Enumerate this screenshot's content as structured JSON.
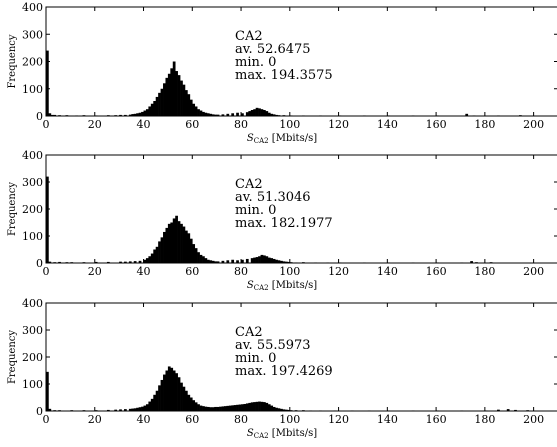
{
  "chart_data": [
    {
      "type": "bar",
      "xlabel_symbol": "S",
      "xlabel_subscript": "CA2",
      "xlabel_unit": "[Mbits/s]",
      "ylabel": "Frequency",
      "xlim": [
        0,
        210
      ],
      "ylim": [
        0,
        400
      ],
      "xticks": [
        "0",
        "20",
        "40",
        "60",
        "80",
        "100",
        "120",
        "140",
        "160",
        "180",
        "200"
      ],
      "yticks": [
        "0",
        "100",
        "200",
        "300",
        "400"
      ],
      "annotation": [
        "CA2",
        "av.  52.6475",
        "min.  0",
        "max.  194.3575"
      ],
      "bin_width": 1,
      "bins": [
        [
          0,
          240
        ],
        [
          1,
          10
        ],
        [
          2,
          4
        ],
        [
          3,
          4
        ],
        [
          5,
          3
        ],
        [
          8,
          3
        ],
        [
          12,
          2
        ],
        [
          15,
          3
        ],
        [
          20,
          2
        ],
        [
          25,
          3
        ],
        [
          28,
          3
        ],
        [
          30,
          4
        ],
        [
          32,
          4
        ],
        [
          34,
          5
        ],
        [
          35,
          7
        ],
        [
          36,
          8
        ],
        [
          37,
          10
        ],
        [
          38,
          12
        ],
        [
          39,
          15
        ],
        [
          40,
          20
        ],
        [
          41,
          25
        ],
        [
          42,
          35
        ],
        [
          43,
          45
        ],
        [
          44,
          55
        ],
        [
          45,
          70
        ],
        [
          46,
          85
        ],
        [
          47,
          100
        ],
        [
          48,
          120
        ],
        [
          49,
          140
        ],
        [
          50,
          155
        ],
        [
          51,
          175
        ],
        [
          52,
          200
        ],
        [
          53,
          165
        ],
        [
          54,
          150
        ],
        [
          55,
          130
        ],
        [
          56,
          115
        ],
        [
          57,
          95
        ],
        [
          58,
          80
        ],
        [
          59,
          60
        ],
        [
          60,
          45
        ],
        [
          61,
          35
        ],
        [
          62,
          25
        ],
        [
          63,
          20
        ],
        [
          64,
          15
        ],
        [
          65,
          12
        ],
        [
          66,
          10
        ],
        [
          67,
          8
        ],
        [
          68,
          6
        ],
        [
          69,
          5
        ],
        [
          70,
          5
        ],
        [
          72,
          6
        ],
        [
          74,
          8
        ],
        [
          76,
          10
        ],
        [
          78,
          12
        ],
        [
          80,
          10
        ],
        [
          82,
          14
        ],
        [
          83,
          18
        ],
        [
          84,
          22
        ],
        [
          85,
          25
        ],
        [
          86,
          30
        ],
        [
          87,
          28
        ],
        [
          88,
          25
        ],
        [
          89,
          22
        ],
        [
          90,
          18
        ],
        [
          91,
          12
        ],
        [
          92,
          8
        ],
        [
          93,
          6
        ],
        [
          94,
          4
        ],
        [
          95,
          3
        ],
        [
          97,
          3
        ],
        [
          100,
          2
        ],
        [
          105,
          2
        ],
        [
          112,
          2
        ],
        [
          120,
          2
        ],
        [
          130,
          2
        ],
        [
          140,
          2
        ],
        [
          150,
          2
        ],
        [
          160,
          2
        ],
        [
          172,
          8
        ],
        [
          175,
          2
        ],
        [
          185,
          2
        ],
        [
          194,
          3
        ]
      ]
    },
    {
      "type": "bar",
      "xlabel_symbol": "S",
      "xlabel_subscript": "CA2",
      "xlabel_unit": "[Mbits/s]",
      "ylabel": "Frequency",
      "xlim": [
        0,
        210
      ],
      "ylim": [
        0,
        400
      ],
      "xticks": [
        "0",
        "20",
        "40",
        "60",
        "80",
        "100",
        "120",
        "140",
        "160",
        "180",
        "200"
      ],
      "yticks": [
        "0",
        "100",
        "200",
        "300",
        "400"
      ],
      "annotation": [
        "CA2",
        "av.  51.3046",
        "min.  0",
        "max.  182.1977"
      ],
      "bin_width": 1,
      "bins": [
        [
          0,
          320
        ],
        [
          1,
          5
        ],
        [
          3,
          3
        ],
        [
          5,
          4
        ],
        [
          8,
          3
        ],
        [
          10,
          3
        ],
        [
          15,
          3
        ],
        [
          20,
          4
        ],
        [
          25,
          4
        ],
        [
          30,
          5
        ],
        [
          32,
          5
        ],
        [
          34,
          6
        ],
        [
          36,
          7
        ],
        [
          38,
          8
        ],
        [
          40,
          12
        ],
        [
          41,
          18
        ],
        [
          42,
          25
        ],
        [
          43,
          35
        ],
        [
          44,
          50
        ],
        [
          45,
          60
        ],
        [
          46,
          80
        ],
        [
          47,
          95
        ],
        [
          48,
          115
        ],
        [
          49,
          130
        ],
        [
          50,
          145
        ],
        [
          51,
          150
        ],
        [
          52,
          165
        ],
        [
          53,
          175
        ],
        [
          54,
          155
        ],
        [
          55,
          145
        ],
        [
          56,
          135
        ],
        [
          57,
          120
        ],
        [
          58,
          110
        ],
        [
          59,
          90
        ],
        [
          60,
          70
        ],
        [
          61,
          55
        ],
        [
          62,
          40
        ],
        [
          63,
          30
        ],
        [
          64,
          25
        ],
        [
          65,
          18
        ],
        [
          66,
          12
        ],
        [
          67,
          10
        ],
        [
          68,
          8
        ],
        [
          69,
          6
        ],
        [
          70,
          6
        ],
        [
          72,
          8
        ],
        [
          74,
          10
        ],
        [
          76,
          12
        ],
        [
          78,
          10
        ],
        [
          80,
          12
        ],
        [
          82,
          15
        ],
        [
          84,
          18
        ],
        [
          85,
          20
        ],
        [
          86,
          22
        ],
        [
          87,
          25
        ],
        [
          88,
          30
        ],
        [
          89,
          28
        ],
        [
          90,
          25
        ],
        [
          91,
          20
        ],
        [
          92,
          18
        ],
        [
          93,
          15
        ],
        [
          94,
          12
        ],
        [
          95,
          10
        ],
        [
          96,
          8
        ],
        [
          97,
          6
        ],
        [
          98,
          5
        ],
        [
          99,
          4
        ],
        [
          100,
          3
        ],
        [
          102,
          2
        ],
        [
          105,
          3
        ],
        [
          110,
          2
        ],
        [
          115,
          2
        ],
        [
          120,
          2
        ],
        [
          130,
          2
        ],
        [
          140,
          2
        ],
        [
          150,
          2
        ],
        [
          160,
          2
        ],
        [
          170,
          2
        ],
        [
          174,
          7
        ],
        [
          176,
          3
        ],
        [
          182,
          3
        ]
      ]
    },
    {
      "type": "bar",
      "xlabel_symbol": "S",
      "xlabel_subscript": "CA2",
      "xlabel_unit": "[Mbits/s]",
      "ylabel": "Frequency",
      "xlim": [
        0,
        210
      ],
      "ylim": [
        0,
        400
      ],
      "xticks": [
        "0",
        "20",
        "40",
        "60",
        "80",
        "100",
        "120",
        "140",
        "160",
        "180",
        "200"
      ],
      "yticks": [
        "0",
        "100",
        "200",
        "300",
        "400"
      ],
      "annotation": [
        "CA2",
        "av.  55.5973",
        "min.  0",
        "max.  197.4269"
      ],
      "bin_width": 1,
      "bins": [
        [
          0,
          145
        ],
        [
          1,
          8
        ],
        [
          3,
          3
        ],
        [
          5,
          3
        ],
        [
          10,
          3
        ],
        [
          15,
          3
        ],
        [
          20,
          3
        ],
        [
          25,
          4
        ],
        [
          28,
          5
        ],
        [
          30,
          6
        ],
        [
          32,
          7
        ],
        [
          34,
          8
        ],
        [
          35,
          9
        ],
        [
          36,
          10
        ],
        [
          37,
          12
        ],
        [
          38,
          14
        ],
        [
          39,
          16
        ],
        [
          40,
          20
        ],
        [
          41,
          25
        ],
        [
          42,
          35
        ],
        [
          43,
          45
        ],
        [
          44,
          60
        ],
        [
          45,
          75
        ],
        [
          46,
          95
        ],
        [
          47,
          115
        ],
        [
          48,
          135
        ],
        [
          49,
          150
        ],
        [
          50,
          165
        ],
        [
          51,
          160
        ],
        [
          52,
          150
        ],
        [
          53,
          140
        ],
        [
          54,
          125
        ],
        [
          55,
          105
        ],
        [
          56,
          90
        ],
        [
          57,
          75
        ],
        [
          58,
          60
        ],
        [
          59,
          50
        ],
        [
          60,
          40
        ],
        [
          61,
          32
        ],
        [
          62,
          25
        ],
        [
          63,
          20
        ],
        [
          64,
          18
        ],
        [
          65,
          16
        ],
        [
          66,
          15
        ],
        [
          67,
          14
        ],
        [
          68,
          14
        ],
        [
          69,
          15
        ],
        [
          70,
          15
        ],
        [
          71,
          16
        ],
        [
          72,
          17
        ],
        [
          73,
          18
        ],
        [
          74,
          19
        ],
        [
          75,
          20
        ],
        [
          76,
          21
        ],
        [
          77,
          22
        ],
        [
          78,
          23
        ],
        [
          79,
          24
        ],
        [
          80,
          25
        ],
        [
          81,
          26
        ],
        [
          82,
          28
        ],
        [
          83,
          30
        ],
        [
          84,
          32
        ],
        [
          85,
          33
        ],
        [
          86,
          34
        ],
        [
          87,
          35
        ],
        [
          88,
          34
        ],
        [
          89,
          33
        ],
        [
          90,
          30
        ],
        [
          91,
          25
        ],
        [
          92,
          20
        ],
        [
          93,
          15
        ],
        [
          94,
          12
        ],
        [
          95,
          10
        ],
        [
          96,
          8
        ],
        [
          97,
          6
        ],
        [
          98,
          5
        ],
        [
          99,
          4
        ],
        [
          100,
          3
        ],
        [
          102,
          3
        ],
        [
          105,
          3
        ],
        [
          108,
          2
        ],
        [
          112,
          2
        ],
        [
          118,
          2
        ],
        [
          125,
          2
        ],
        [
          132,
          2
        ],
        [
          140,
          2
        ],
        [
          150,
          2
        ],
        [
          160,
          2
        ],
        [
          170,
          2
        ],
        [
          180,
          2
        ],
        [
          185,
          5
        ],
        [
          189,
          7
        ],
        [
          192,
          4
        ],
        [
          197,
          3
        ]
      ]
    }
  ]
}
